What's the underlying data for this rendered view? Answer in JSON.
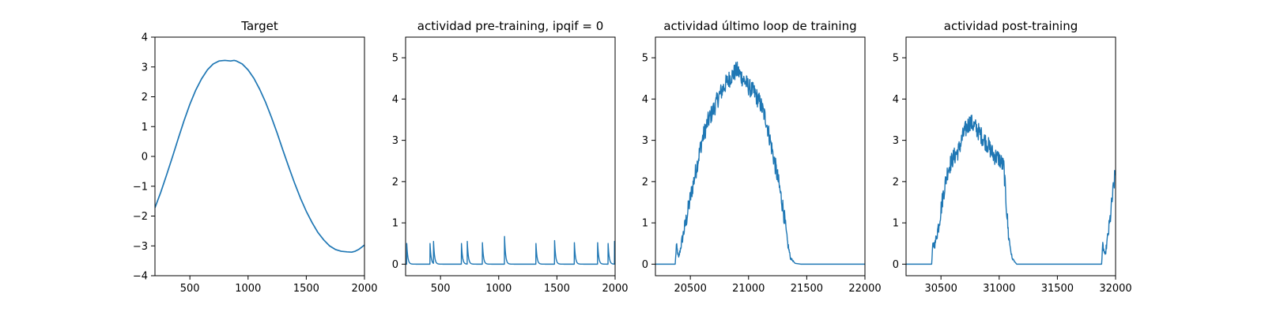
{
  "chart_data": [
    {
      "type": "line",
      "title": "Target",
      "xlabel": "",
      "ylabel": "",
      "xlim": [
        200,
        2000
      ],
      "ylim": [
        -4,
        4
      ],
      "xticks": [
        500,
        1000,
        1500,
        2000
      ],
      "yticks": [
        -4,
        -3,
        -2,
        -1,
        0,
        1,
        2,
        3,
        4
      ],
      "xtick_labels": [
        "500",
        "1000",
        "1500",
        "2000"
      ],
      "ytick_labels": [
        "−4",
        "−3",
        "−2",
        "−1",
        "0",
        "1",
        "2",
        "3",
        "4"
      ],
      "grid": false,
      "series": [
        {
          "color": "#1f77b4",
          "x": [
            200,
            250,
            300,
            350,
            400,
            450,
            500,
            550,
            600,
            650,
            700,
            750,
            800,
            850,
            880,
            900,
            950,
            1000,
            1050,
            1100,
            1150,
            1200,
            1250,
            1300,
            1350,
            1400,
            1450,
            1500,
            1550,
            1600,
            1650,
            1700,
            1750,
            1800,
            1850,
            1890,
            1920,
            1950,
            2000
          ],
          "y": [
            -1.72,
            -1.2,
            -0.62,
            -0.02,
            0.6,
            1.2,
            1.75,
            2.22,
            2.6,
            2.9,
            3.1,
            3.2,
            3.22,
            3.2,
            3.22,
            3.2,
            3.1,
            2.9,
            2.62,
            2.25,
            1.82,
            1.32,
            0.78,
            0.2,
            -0.36,
            -0.9,
            -1.4,
            -1.84,
            -2.22,
            -2.55,
            -2.8,
            -3.0,
            -3.12,
            -3.18,
            -3.2,
            -3.21,
            -3.18,
            -3.12,
            -2.97
          ]
        }
      ]
    },
    {
      "type": "line",
      "title": "actividad pre-training, ipqif = 0",
      "xlabel": "",
      "ylabel": "",
      "xlim": [
        200,
        2000
      ],
      "ylim": [
        -0.28,
        5.5
      ],
      "xticks": [
        500,
        1000,
        1500,
        2000
      ],
      "yticks": [
        0,
        1,
        2,
        3,
        4,
        5
      ],
      "xtick_labels": [
        "500",
        "1000",
        "1500",
        "2000"
      ],
      "ytick_labels": [
        "0",
        "1",
        "2",
        "3",
        "4",
        "5"
      ],
      "grid": false,
      "series": [
        {
          "color": "#1f77b4",
          "spikes": [
            {
              "t": 210,
              "h": 0.5
            },
            {
              "t": 410,
              "h": 0.5
            },
            {
              "t": 440,
              "h": 0.55
            },
            {
              "t": 680,
              "h": 0.5
            },
            {
              "t": 730,
              "h": 0.55
            },
            {
              "t": 860,
              "h": 0.52
            },
            {
              "t": 1050,
              "h": 0.67
            },
            {
              "t": 1320,
              "h": 0.5
            },
            {
              "t": 1480,
              "h": 0.57
            },
            {
              "t": 1650,
              "h": 0.52
            },
            {
              "t": 1850,
              "h": 0.52
            },
            {
              "t": 1940,
              "h": 0.5
            },
            {
              "t": 1995,
              "h": 0.55
            }
          ]
        }
      ]
    },
    {
      "type": "line",
      "title": "actividad último loop de training",
      "xlabel": "",
      "ylabel": "",
      "xlim": [
        20200,
        22000
      ],
      "ylim": [
        -0.28,
        5.5
      ],
      "xticks": [
        20500,
        21000,
        21500,
        22000
      ],
      "yticks": [
        0,
        1,
        2,
        3,
        4,
        5
      ],
      "xtick_labels": [
        "20500",
        "21000",
        "21500",
        "22000"
      ],
      "ytick_labels": [
        "0",
        "1",
        "2",
        "3",
        "4",
        "5"
      ],
      "grid": false,
      "series": [
        {
          "color": "#1f77b4",
          "x": [
            20200,
            20370,
            20380,
            20400,
            20430,
            20460,
            20500,
            20550,
            20600,
            20650,
            20700,
            20750,
            20800,
            20850,
            20900,
            20950,
            21000,
            21050,
            21100,
            21150,
            21200,
            21250,
            21300,
            21330,
            21360,
            21400,
            21450,
            22000
          ],
          "y": [
            0,
            0,
            0.45,
            0.15,
            0.6,
            1.0,
            1.6,
            2.3,
            3.0,
            3.45,
            3.75,
            4.1,
            4.35,
            4.55,
            4.7,
            4.5,
            4.3,
            4.15,
            3.9,
            3.5,
            2.8,
            2.1,
            1.3,
            0.6,
            0.15,
            0.02,
            0,
            0
          ]
        }
      ]
    },
    {
      "type": "line",
      "title": "actividad post-training",
      "xlabel": "",
      "ylabel": "",
      "xlim": [
        30200,
        32000
      ],
      "ylim": [
        -0.28,
        5.5
      ],
      "xticks": [
        30500,
        31000,
        31500,
        32000
      ],
      "yticks": [
        0,
        1,
        2,
        3,
        4,
        5
      ],
      "xtick_labels": [
        "30500",
        "31000",
        "31500",
        "32000"
      ],
      "ytick_labels": [
        "0",
        "1",
        "2",
        "3",
        "4",
        "5"
      ],
      "grid": false,
      "series": [
        {
          "color": "#1f77b4",
          "x": [
            30200,
            30420,
            30430,
            30450,
            30480,
            30520,
            30560,
            30600,
            30650,
            30700,
            30750,
            30800,
            30850,
            30900,
            30950,
            31000,
            31040,
            31060,
            31080,
            31110,
            31150,
            31880,
            31890,
            31910,
            31950,
            31980,
            32000
          ],
          "y": [
            0,
            0,
            0.45,
            0.5,
            0.95,
            1.7,
            2.3,
            2.55,
            2.75,
            3.2,
            3.45,
            3.3,
            3.1,
            2.9,
            2.65,
            2.55,
            2.35,
            1.5,
            0.7,
            0.15,
            0,
            0,
            0.45,
            0.2,
            1.0,
            1.8,
            2.25
          ]
        }
      ]
    }
  ]
}
